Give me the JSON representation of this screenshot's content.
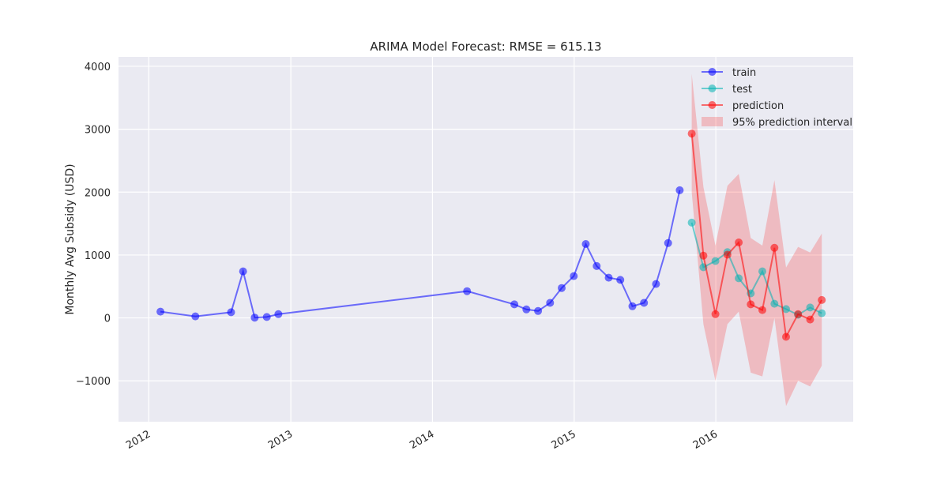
{
  "chart_data": {
    "type": "line",
    "title": "ARIMA Model Forecast: RMSE = 615.13",
    "xlabel": "",
    "ylabel": "Monthly Avg Subsidy (USD)",
    "xlim": [
      "2011-10-15",
      "2016-12-20"
    ],
    "ylim": [
      -1650,
      4150
    ],
    "x_ticks": [
      "2012",
      "2013",
      "2014",
      "2015",
      "2016"
    ],
    "y_ticks": [
      -1000,
      0,
      1000,
      2000,
      3000,
      4000
    ],
    "y_tick_labels": [
      "−1000",
      "0",
      "1000",
      "2000",
      "3000",
      "4000"
    ],
    "grid": true,
    "legend_position": "top-right",
    "series": [
      {
        "name": "train",
        "color": "#0000ff",
        "x": [
          "2012-01-31",
          "2012-04-30",
          "2012-07-31",
          "2012-08-31",
          "2012-09-30",
          "2012-10-31",
          "2012-11-30",
          "2014-03-31",
          "2014-07-31",
          "2014-08-31",
          "2014-09-30",
          "2014-10-31",
          "2014-11-30",
          "2014-12-31",
          "2015-01-31",
          "2015-02-28",
          "2015-03-31",
          "2015-04-30",
          "2015-05-31",
          "2015-06-30",
          "2015-07-31",
          "2015-08-31",
          "2015-09-30"
        ],
        "values": [
          100,
          25,
          90,
          740,
          5,
          15,
          60,
          425,
          215,
          135,
          110,
          240,
          475,
          665,
          1175,
          825,
          640,
          605,
          185,
          240,
          540,
          1190,
          2030
        ]
      },
      {
        "name": "test",
        "color": "#00b3b3",
        "x": [
          "2015-10-31",
          "2015-11-30",
          "2015-12-31",
          "2016-01-31",
          "2016-02-29",
          "2016-03-31",
          "2016-04-30",
          "2016-05-31",
          "2016-06-30",
          "2016-07-31",
          "2016-08-31",
          "2016-09-30"
        ],
        "values": [
          1515,
          805,
          905,
          1045,
          630,
          390,
          740,
          225,
          140,
          50,
          165,
          75
        ]
      },
      {
        "name": "prediction",
        "color": "#ff0000",
        "x": [
          "2015-10-31",
          "2015-11-30",
          "2015-12-31",
          "2016-01-31",
          "2016-02-29",
          "2016-03-31",
          "2016-04-30",
          "2016-05-31",
          "2016-06-30",
          "2016-07-31",
          "2016-08-31",
          "2016-09-30"
        ],
        "values": [
          2930,
          990,
          60,
          1005,
          1200,
          215,
          125,
          1115,
          -300,
          60,
          -25,
          285
        ]
      }
    ],
    "interval": {
      "name": "95% prediction interval",
      "color": "#ff0000",
      "x": [
        "2015-10-31",
        "2015-11-30",
        "2015-12-31",
        "2016-01-31",
        "2016-02-29",
        "2016-03-31",
        "2016-04-30",
        "2016-05-31",
        "2016-06-30",
        "2016-07-31",
        "2016-08-31",
        "2016-09-30"
      ],
      "lower": [
        2000,
        -100,
        -1000,
        -100,
        100,
        -870,
        -930,
        0,
        -1400,
        -1000,
        -1090,
        -760
      ],
      "upper": [
        3880,
        2080,
        1150,
        2100,
        2290,
        1270,
        1150,
        2190,
        800,
        1130,
        1040,
        1340
      ]
    }
  }
}
